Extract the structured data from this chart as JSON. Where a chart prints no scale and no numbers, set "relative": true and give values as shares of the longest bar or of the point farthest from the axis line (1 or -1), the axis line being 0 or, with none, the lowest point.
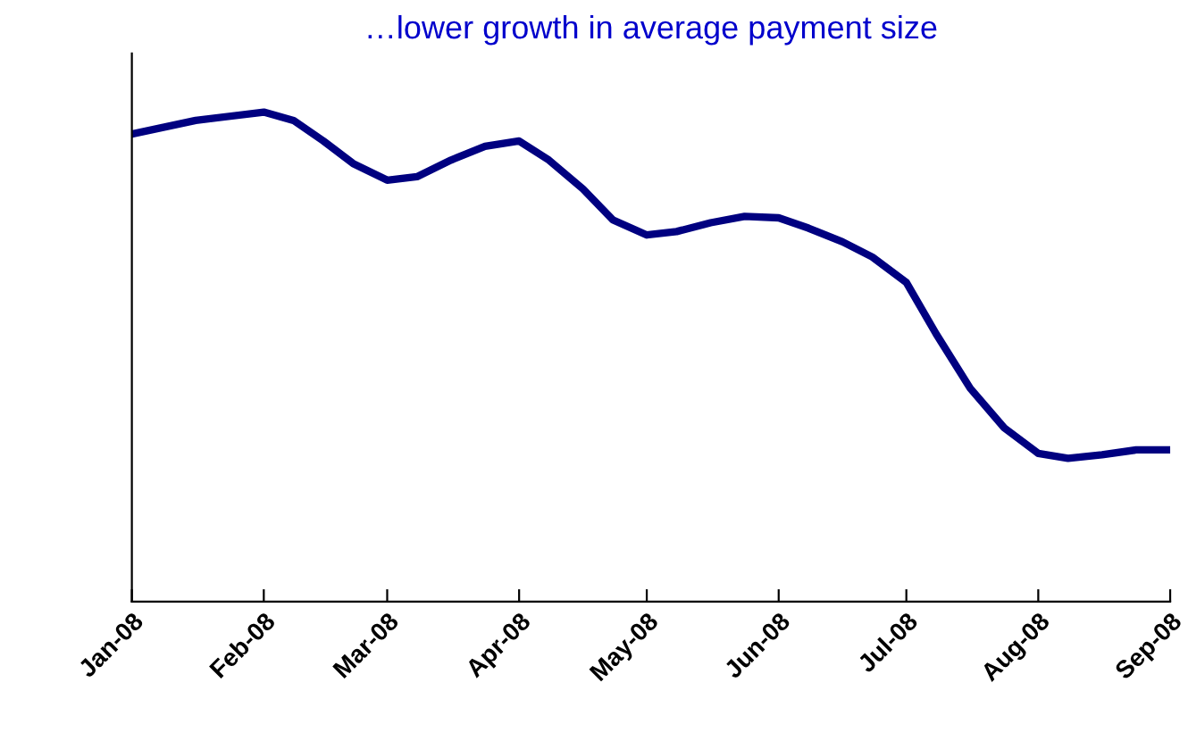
{
  "chart_data": {
    "type": "line",
    "title": "…lower growth in average payment size",
    "relative": true,
    "x": [
      "2008-01-01",
      "2008-01-16",
      "2008-02-01",
      "2008-02-08",
      "2008-02-15",
      "2008-02-22",
      "2008-03-01",
      "2008-03-08",
      "2008-03-16",
      "2008-03-24",
      "2008-04-01",
      "2008-04-08",
      "2008-04-16",
      "2008-04-23",
      "2008-05-01",
      "2008-05-08",
      "2008-05-16",
      "2008-05-24",
      "2008-06-01",
      "2008-06-08",
      "2008-06-16",
      "2008-06-23",
      "2008-07-01",
      "2008-07-08",
      "2008-07-16",
      "2008-07-24",
      "2008-08-01",
      "2008-08-08",
      "2008-08-16",
      "2008-08-24",
      "2008-09-01"
    ],
    "series": [
      {
        "color": "#000080",
        "values": [
          0.955,
          0.983,
          1,
          0.983,
          0.941,
          0.895,
          0.861,
          0.868,
          0.902,
          0.93,
          0.941,
          0.902,
          0.843,
          0.78,
          0.749,
          0.756,
          0.774,
          0.787,
          0.784,
          0.763,
          0.735,
          0.704,
          0.652,
          0.547,
          0.436,
          0.355,
          0.303,
          0.293,
          0.3,
          0.31,
          0.31
        ]
      }
    ],
    "xlim": [
      "2008-01-01",
      "2008-09-01"
    ],
    "xticks": [
      {
        "value": "2008-01-01",
        "label": "Jan-08"
      },
      {
        "value": "2008-02-01",
        "label": "Feb-08"
      },
      {
        "value": "2008-03-01",
        "label": "Mar-08"
      },
      {
        "value": "2008-04-01",
        "label": "Apr-08"
      },
      {
        "value": "2008-05-01",
        "label": "May-08"
      },
      {
        "value": "2008-06-01",
        "label": "Jun-08"
      },
      {
        "value": "2008-07-01",
        "label": "Jul-08"
      },
      {
        "value": "2008-08-01",
        "label": "Aug-08"
      },
      {
        "value": "2008-09-01",
        "label": "Sep-08"
      }
    ],
    "tick_labels": "x",
    "grid": false,
    "legend": false,
    "marker": "none",
    "line_style": "solid"
  }
}
